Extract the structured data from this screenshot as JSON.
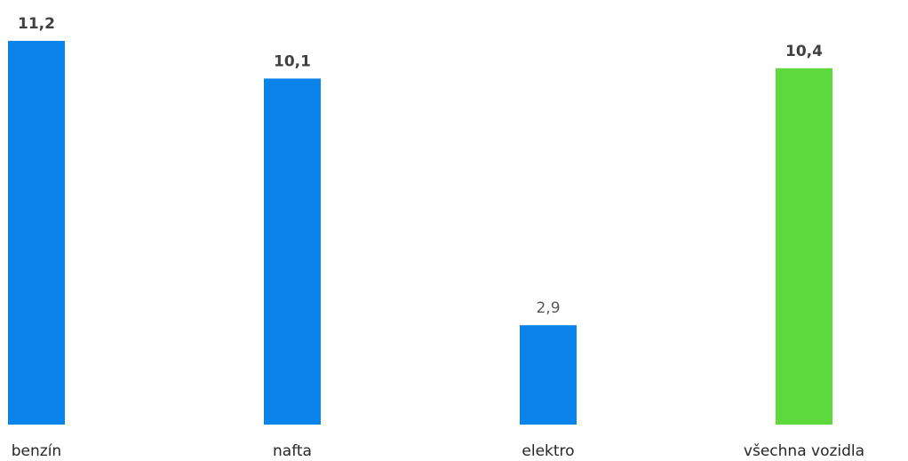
{
  "chart_data": {
    "type": "bar",
    "categories": [
      "benzín",
      "nafta",
      "elektro",
      "všechna vozidla"
    ],
    "values": [
      11.2,
      10.1,
      2.9,
      10.4
    ],
    "value_labels": [
      "11,2",
      "10,1",
      "2,9",
      "10,4"
    ],
    "label_weight": [
      "bold",
      "bold",
      "normal",
      "bold"
    ],
    "colors": [
      "#0a84ea",
      "#0a84ea",
      "#0a84ea",
      "#5dd93e"
    ],
    "title": "",
    "xlabel": "",
    "ylabel": "",
    "ylim": [
      0,
      11.2
    ],
    "grid": false,
    "legend": "none"
  }
}
